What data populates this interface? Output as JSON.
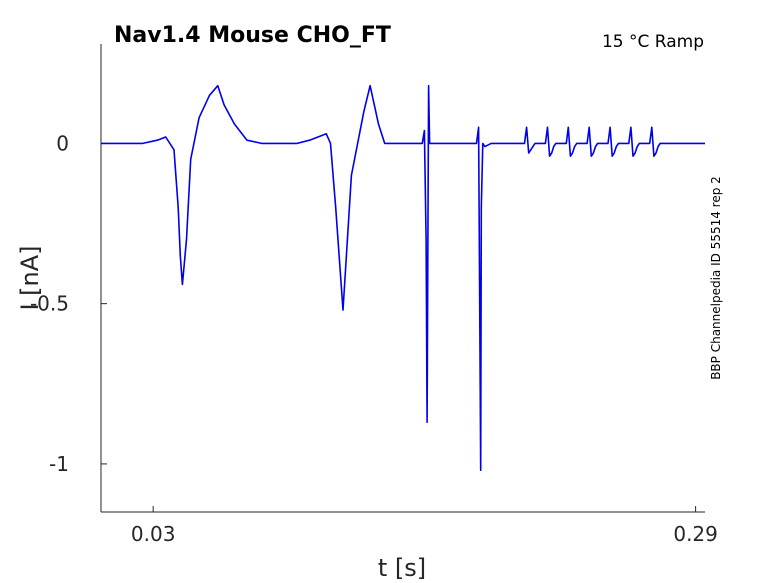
{
  "chart_data": {
    "type": "line",
    "title": "Nav1.4  Mouse  CHO_FT",
    "condition": "15 °C  Ramp",
    "side_label": "BBP Channelpedia ID 55514 rep 2",
    "xlabel": "t [s]",
    "ylabel": "I [nA]",
    "xlim": [
      0.005,
      0.2945
    ],
    "ylim": [
      -1.15,
      0.31
    ],
    "xticks": [
      0.03,
      0.29
    ],
    "xtick_labels": [
      "0.03",
      "0.29"
    ],
    "yticks": [
      0,
      -0.5,
      -1
    ],
    "ytick_labels": [
      "0",
      "-0.5",
      "-1"
    ],
    "grid": false,
    "series_color": "#0000ee",
    "series": [
      {
        "x": [
          0.005,
          0.015,
          0.025,
          0.032,
          0.036,
          0.04,
          0.042,
          0.043,
          0.044,
          0.046,
          0.048,
          0.052,
          0.057,
          0.061,
          0.062,
          0.064,
          0.069,
          0.075,
          0.082,
          0.09,
          0.099,
          0.105,
          0.113,
          0.115,
          0.1175,
          0.121,
          0.125,
          0.131,
          0.134,
          0.138,
          0.141,
          0.145,
          0.153,
          0.159,
          0.16,
          0.1608,
          0.1613,
          0.1617,
          0.162,
          0.1625,
          0.165,
          0.17,
          0.18,
          0.185,
          0.186,
          0.1866,
          0.187,
          0.1873,
          0.188,
          0.189,
          0.192,
          0.2,
          0.208,
          0.209,
          0.21,
          0.211,
          0.212,
          0.213,
          0.215,
          0.218,
          0.219,
          0.22,
          0.221,
          0.222,
          0.223,
          0.225,
          0.228,
          0.229,
          0.23,
          0.231,
          0.232,
          0.233,
          0.235,
          0.238,
          0.239,
          0.24,
          0.241,
          0.242,
          0.243,
          0.245,
          0.248,
          0.249,
          0.25,
          0.251,
          0.252,
          0.253,
          0.255,
          0.258,
          0.259,
          0.26,
          0.261,
          0.262,
          0.263,
          0.265,
          0.268,
          0.269,
          0.27,
          0.271,
          0.272,
          0.273,
          0.275,
          0.28,
          0.29,
          0.2945
        ],
        "y": [
          0.0,
          0.0,
          0.0,
          0.01,
          0.02,
          -0.02,
          -0.2,
          -0.35,
          -0.44,
          -0.3,
          -0.05,
          0.08,
          0.15,
          0.18,
          0.16,
          0.12,
          0.06,
          0.01,
          0.0,
          0.0,
          0.0,
          0.01,
          0.03,
          0.0,
          -0.2,
          -0.52,
          -0.1,
          0.1,
          0.18,
          0.06,
          0.0,
          0.0,
          0.0,
          0.0,
          0.04,
          -0.3,
          -0.87,
          -0.3,
          0.18,
          0.0,
          0.0,
          0.0,
          0.0,
          0.0,
          0.05,
          -0.6,
          -1.02,
          -0.2,
          0.0,
          -0.01,
          0.0,
          0.0,
          0.0,
          0.05,
          -0.03,
          -0.02,
          -0.01,
          0.0,
          0.0,
          0.0,
          0.05,
          -0.04,
          -0.03,
          -0.01,
          0.0,
          0.0,
          0.0,
          0.05,
          -0.04,
          -0.03,
          -0.01,
          0.0,
          0.0,
          0.0,
          0.05,
          -0.04,
          -0.03,
          -0.01,
          0.0,
          0.0,
          0.0,
          0.05,
          -0.04,
          -0.03,
          -0.01,
          0.0,
          0.0,
          0.0,
          0.05,
          -0.04,
          -0.03,
          -0.01,
          0.0,
          0.0,
          0.0,
          0.05,
          -0.04,
          -0.03,
          -0.01,
          0.0,
          0.0,
          0.0,
          0.0,
          0.0
        ]
      }
    ]
  }
}
